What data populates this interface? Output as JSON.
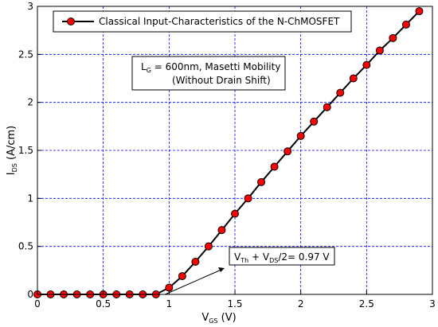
{
  "chart_data": {
    "type": "line",
    "x": [
      0,
      0.1,
      0.2,
      0.3,
      0.4,
      0.5,
      0.6,
      0.7,
      0.8,
      0.9,
      1.0,
      1.1,
      1.2,
      1.3,
      1.4,
      1.5,
      1.6,
      1.7,
      1.8,
      1.9,
      2.0,
      2.1,
      2.2,
      2.3,
      2.4,
      2.5,
      2.6,
      2.7,
      2.8,
      2.9
    ],
    "series": [
      {
        "name": "Classical Input-Characteristics of the N-ChMOSFET",
        "color": "#ff0000",
        "line_color": "#000000",
        "marker": "circle",
        "values": [
          0,
          0,
          0,
          0,
          0,
          0,
          0,
          0,
          0,
          0,
          0.07,
          0.19,
          0.34,
          0.5,
          0.67,
          0.84,
          1.0,
          1.17,
          1.33,
          1.49,
          1.65,
          1.8,
          1.95,
          2.1,
          2.25,
          2.39,
          2.54,
          2.67,
          2.81,
          2.95
        ]
      }
    ],
    "xlabel": {
      "main": "V",
      "sub": "GS",
      "rest": " (V)"
    },
    "ylabel": {
      "main": "I",
      "sub": "DS",
      "rest": " (A/cm)"
    },
    "xlim": [
      0,
      3
    ],
    "ylim": [
      0,
      3
    ],
    "xticks": [
      "0",
      "0.5",
      "1",
      "1.5",
      "2",
      "2.5",
      "3"
    ],
    "yticks": [
      "0",
      "0.5",
      "1",
      "1.5",
      "2",
      "2.5",
      "3"
    ],
    "grid": true,
    "grid_color": "#0000ff",
    "legend_position": "top-left",
    "annotation_box": {
      "line1": {
        "main": "L",
        "sub": "G",
        "rest": " = 600nm, Masetti Mobility"
      },
      "line2": "(Without Drain Shift)"
    },
    "threshold_annotation": {
      "part1": "V",
      "sub1": "Th",
      "part2": " + V",
      "sub2": "DS",
      "part3": "/2= 0.97 V",
      "point": [
        0.97,
        0
      ]
    }
  }
}
